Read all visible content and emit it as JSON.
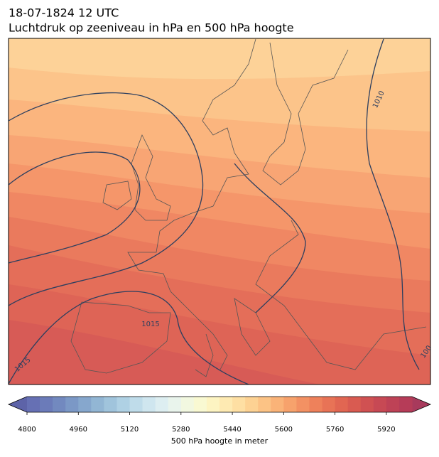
{
  "header": {
    "date": "18-07-1824 12 UTC",
    "title": "Luchtdruk op zeeniveau in hPa en 500 hPa hoogte"
  },
  "map": {
    "contour_labels": [
      "1010",
      "1015",
      "1015",
      "100"
    ]
  },
  "colorbar": {
    "label": "500 hPa hoogte in meter",
    "lim": [
      4800,
      6000
    ],
    "ticks": [
      4800,
      4960,
      5120,
      5280,
      5440,
      5600,
      5760,
      5920
    ],
    "under_color": "#5d63a8",
    "over_color": "#a83a5c",
    "colors": [
      "#6670b4",
      "#6b7bb9",
      "#7289bf",
      "#7b98c6",
      "#86a7cd",
      "#92b6d4",
      "#a0c4dc",
      "#afd1e4",
      "#bfdcea",
      "#cfe6ef",
      "#ddeef1",
      "#e9f4ec",
      "#f2f8e0",
      "#f9f9d2",
      "#fdf4c2",
      "#feeab2",
      "#fedfa3",
      "#fdd293",
      "#fcc385",
      "#fab378",
      "#f7a26c",
      "#f39163",
      "#ee815b",
      "#e87356",
      "#e16652",
      "#d95b51",
      "#d05152",
      "#c74954",
      "#be4256",
      "#b63c58"
    ]
  }
}
